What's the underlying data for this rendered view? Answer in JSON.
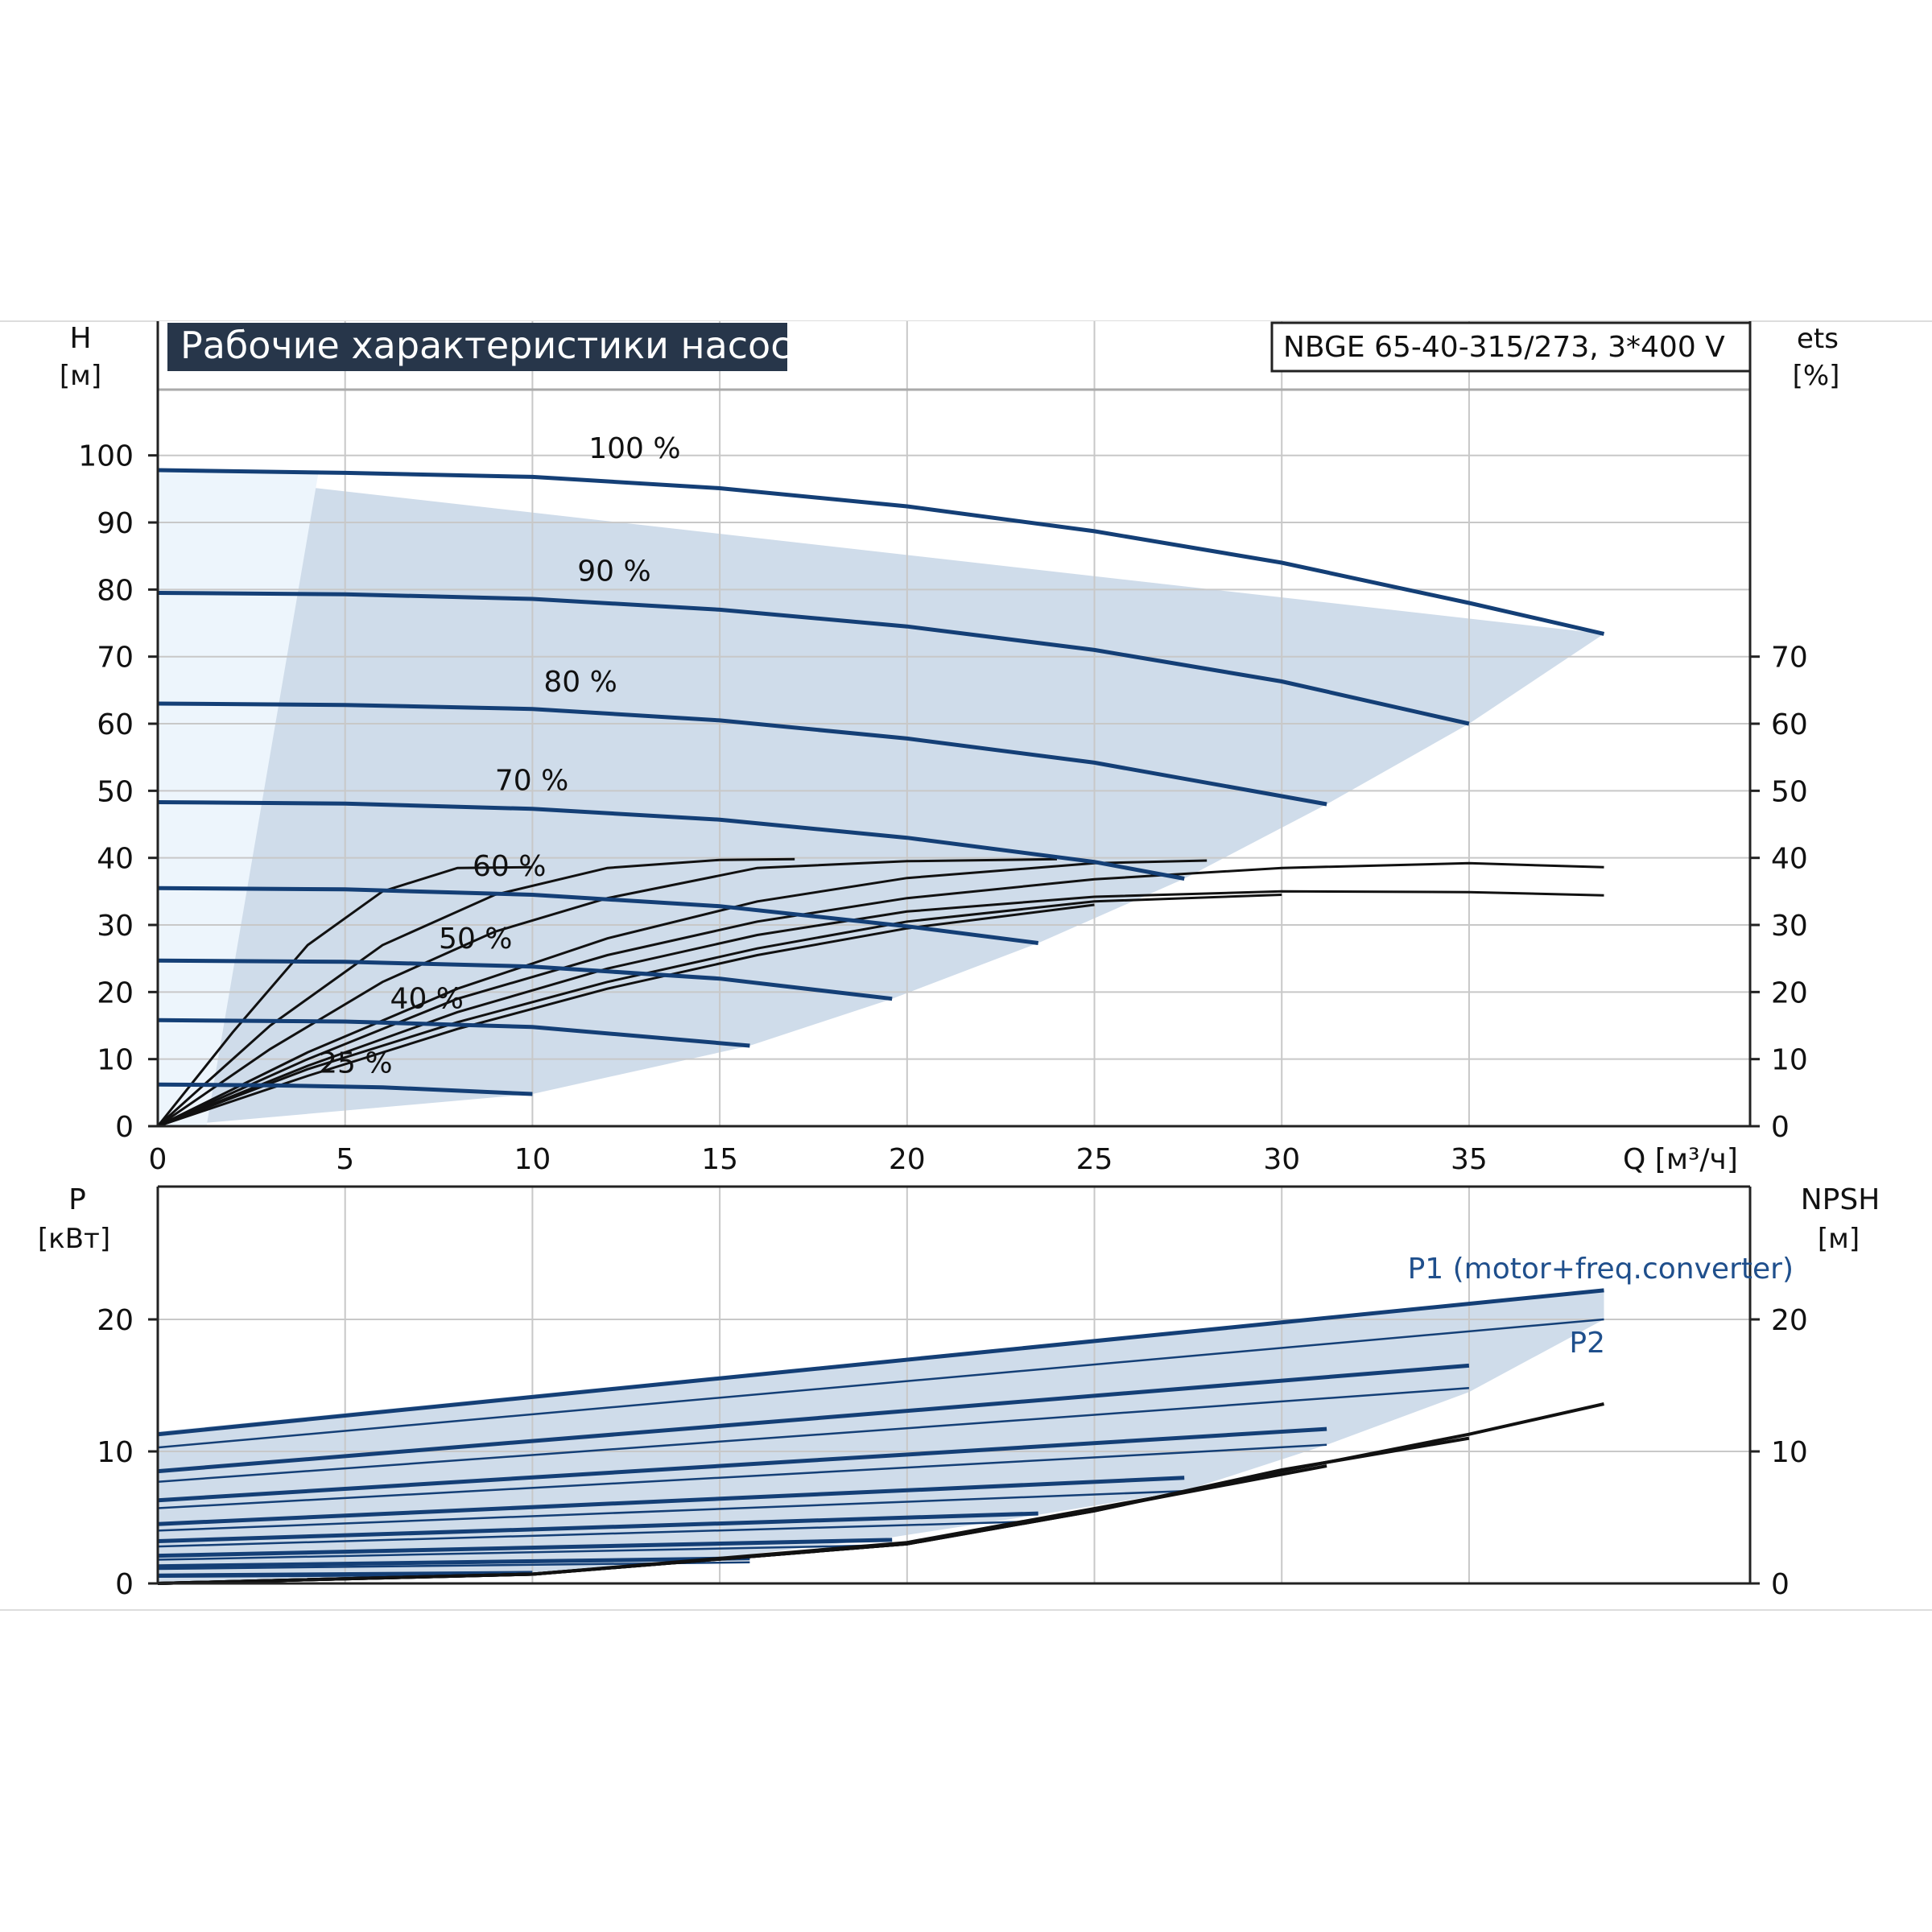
{
  "chart_data": [
    {
      "type": "line",
      "title": "Рабочие характеристики насоса",
      "subtitle": "NBGE 65-40-315/273, 3*400 V",
      "ylabel": "H",
      "yunit": "[м]",
      "y2label": "ets",
      "y2unit": "[%]",
      "xlabel": "Q [м³/ч]",
      "xlim": [
        0,
        42.5
      ],
      "ylim": [
        0,
        110
      ],
      "xticks": [
        0,
        5,
        10,
        15,
        20,
        25,
        30,
        35
      ],
      "yticks": [
        0,
        10,
        20,
        30,
        40,
        50,
        60,
        70,
        80,
        90,
        100
      ],
      "y2ticks": [
        0,
        10,
        20,
        30,
        40,
        50,
        60,
        70
      ],
      "grid": true,
      "colors": {
        "curve": "#143f76",
        "band": "#cfdcea",
        "band_light": "#edf5fc",
        "eff": "#111111",
        "axis": "#222222",
        "grid": "#c8c8c8"
      },
      "operating_region": [
        [
          0,
          0
        ],
        [
          0,
          97.8
        ],
        [
          38.6,
          73.4
        ],
        [
          35,
          60
        ],
        [
          31.2,
          48
        ],
        [
          27.4,
          36.9
        ],
        [
          23.5,
          27.3
        ],
        [
          19.6,
          19
        ],
        [
          15.8,
          12
        ],
        [
          10,
          4.8
        ],
        [
          1.3,
          0.5
        ]
      ],
      "operating_region_light": [
        [
          0,
          0
        ],
        [
          0,
          97.8
        ],
        [
          4.3,
          97.8
        ],
        [
          1.3,
          0
        ]
      ],
      "series": [
        {
          "name": "100 %",
          "x": [
            0,
            5,
            10,
            15,
            20,
            25,
            30,
            35,
            38.6
          ],
          "y": [
            97.8,
            97.4,
            96.8,
            95.1,
            92.4,
            88.7,
            84.0,
            78.0,
            73.4
          ]
        },
        {
          "name": "90 %",
          "x": [
            0,
            5,
            10,
            15,
            20,
            25,
            30,
            35
          ],
          "y": [
            79.5,
            79.3,
            78.6,
            77.0,
            74.5,
            71.0,
            66.3,
            60.0
          ]
        },
        {
          "name": "80 %",
          "x": [
            0,
            5,
            10,
            15,
            20,
            25,
            31.2
          ],
          "y": [
            63.0,
            62.8,
            62.2,
            60.5,
            57.8,
            54.2,
            48.0
          ]
        },
        {
          "name": "70 %",
          "x": [
            0,
            5,
            10,
            15,
            20,
            25,
            27.4
          ],
          "y": [
            48.3,
            48.1,
            47.3,
            45.7,
            43.0,
            39.4,
            36.9
          ]
        },
        {
          "name": "60 %",
          "x": [
            0,
            5,
            10,
            15,
            20,
            23.5
          ],
          "y": [
            35.5,
            35.3,
            34.5,
            32.8,
            29.8,
            27.3
          ]
        },
        {
          "name": "50 %",
          "x": [
            0,
            5,
            10,
            15,
            19.6
          ],
          "y": [
            24.7,
            24.5,
            23.8,
            22.0,
            19.0
          ]
        },
        {
          "name": "40 %",
          "x": [
            0,
            5,
            10,
            15.8
          ],
          "y": [
            15.8,
            15.6,
            14.8,
            12.0
          ]
        },
        {
          "name": "25 %",
          "x": [
            0,
            3,
            6,
            10
          ],
          "y": [
            6.2,
            6.1,
            5.8,
            4.8
          ]
        }
      ],
      "efficiency_curves": [
        {
          "x": [
            0,
            2,
            4,
            6,
            8,
            10
          ],
          "y": [
            0,
            14,
            27,
            35,
            38.5,
            38.6
          ]
        },
        {
          "x": [
            0,
            3,
            6,
            9,
            12,
            15,
            17
          ],
          "y": [
            0,
            15,
            27,
            34.5,
            38.5,
            39.7,
            39.8
          ]
        },
        {
          "x": [
            0,
            3,
            6,
            9,
            12,
            16,
            20,
            24
          ],
          "y": [
            0,
            11.5,
            21.5,
            29,
            34,
            38.5,
            39.5,
            39.8
          ]
        },
        {
          "x": [
            0,
            4,
            8,
            12,
            16,
            20,
            25,
            28
          ],
          "y": [
            0,
            11,
            20.5,
            28,
            33.5,
            37,
            39.2,
            39.6
          ]
        },
        {
          "x": [
            0,
            4,
            8,
            12,
            16,
            20,
            25,
            30,
            35,
            38.6
          ],
          "y": [
            0,
            10,
            19,
            25.5,
            30.5,
            34,
            36.8,
            38.5,
            39.2,
            38.6
          ]
        },
        {
          "x": [
            0,
            4,
            8,
            12,
            16,
            20,
            25,
            30,
            35,
            38.6
          ],
          "y": [
            0,
            9,
            17,
            23.5,
            28.5,
            32,
            34.2,
            35,
            34.9,
            34.4
          ]
        },
        {
          "x": [
            0,
            4,
            8,
            12,
            16,
            20,
            25,
            30
          ],
          "y": [
            0,
            8.5,
            15.5,
            21.5,
            26.5,
            30.5,
            33.5,
            34.5
          ]
        },
        {
          "x": [
            0,
            4,
            8,
            12,
            16,
            20,
            25
          ],
          "y": [
            0,
            7.5,
            14.5,
            20.5,
            25.5,
            29.5,
            33
          ]
        }
      ]
    },
    {
      "type": "line",
      "ylabel": "P",
      "yunit": "[кВт]",
      "y2label": "NPSH",
      "y2unit": "[м]",
      "xlim": [
        0,
        42.5
      ],
      "ylim": [
        0,
        30
      ],
      "yticks": [
        0,
        10,
        20
      ],
      "y2ticks": [
        0,
        10,
        20
      ],
      "grid": true,
      "annotations": [
        "P1 (motor+freq.converter)",
        "P2"
      ],
      "operating_region": [
        [
          0,
          0
        ],
        [
          0,
          11.5
        ],
        [
          38.6,
          22.3
        ],
        [
          38.6,
          20
        ],
        [
          35,
          14.5
        ],
        [
          31.2,
          10.5
        ],
        [
          27.4,
          7
        ],
        [
          23.5,
          5.2
        ],
        [
          19.6,
          3.5
        ],
        [
          15.8,
          2.2
        ],
        [
          10,
          0.8
        ],
        [
          1.3,
          0
        ]
      ],
      "series": [
        {
          "name": "P1 (motor+freq.converter)",
          "x": [
            0,
            38.6
          ],
          "y": [
            11.3,
            22.2
          ]
        },
        {
          "name": "P2",
          "x": [
            0,
            38.6
          ],
          "y": [
            10.3,
            20.0
          ]
        },
        {
          "x": [
            0,
            35
          ],
          "y": [
            8.5,
            16.5
          ]
        },
        {
          "x": [
            0,
            35
          ],
          "y": [
            7.7,
            14.8
          ]
        },
        {
          "x": [
            0,
            31.2
          ],
          "y": [
            6.3,
            11.7
          ]
        },
        {
          "x": [
            0,
            31.2
          ],
          "y": [
            5.7,
            10.5
          ]
        },
        {
          "x": [
            0,
            27.4
          ],
          "y": [
            4.5,
            8.0
          ]
        },
        {
          "x": [
            0,
            27.4
          ],
          "y": [
            4.0,
            7.0
          ]
        },
        {
          "x": [
            0,
            23.5
          ],
          "y": [
            3.2,
            5.3
          ]
        },
        {
          "x": [
            0,
            23.5
          ],
          "y": [
            2.8,
            4.7
          ]
        },
        {
          "x": [
            0,
            19.6
          ],
          "y": [
            2.1,
            3.3
          ]
        },
        {
          "x": [
            0,
            19.6
          ],
          "y": [
            1.8,
            2.9
          ]
        },
        {
          "x": [
            0,
            15.8
          ],
          "y": [
            1.3,
            1.9
          ]
        },
        {
          "x": [
            0,
            15.8
          ],
          "y": [
            1.1,
            1.6
          ]
        },
        {
          "x": [
            0,
            10
          ],
          "y": [
            0.6,
            0.8
          ]
        },
        {
          "x": [
            0,
            10
          ],
          "y": [
            0.5,
            0.65
          ]
        }
      ],
      "npsh": [
        {
          "x": [
            0,
            10,
            20,
            25,
            30,
            35,
            38.6
          ],
          "y": [
            0,
            0.7,
            3.0,
            5.5,
            8.5,
            11.3,
            13.6
          ]
        },
        {
          "x": [
            0,
            10,
            20,
            25,
            30,
            35
          ],
          "y": [
            0,
            0.7,
            3.0,
            5.5,
            8.6,
            11.0
          ]
        },
        {
          "x": [
            0,
            10,
            20,
            25,
            31.2
          ],
          "y": [
            0,
            0.7,
            3.0,
            5.6,
            8.9
          ]
        },
        {
          "x": [
            0,
            10,
            20,
            27.4
          ],
          "y": [
            0,
            0.7,
            3.1,
            6.9
          ]
        }
      ]
    }
  ]
}
